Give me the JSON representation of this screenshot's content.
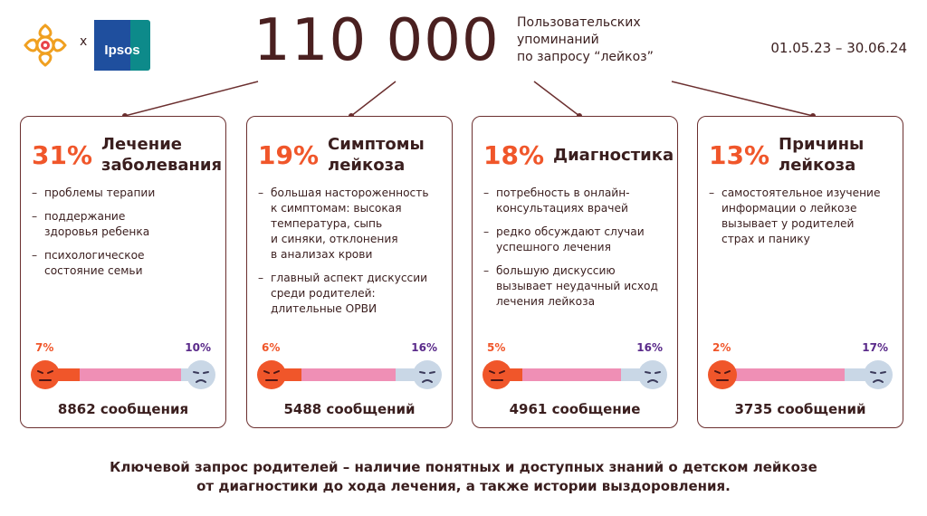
{
  "header": {
    "logo_x": "x",
    "ipsos_text": "Ipsos",
    "big_number": "110 000",
    "mentions_lines": [
      "Пользовательских",
      "упоминаний",
      "по запросу “лейкоз”"
    ],
    "date_range": "01.05.23 – 30.06.24"
  },
  "colors": {
    "accent_orange": "#f0562a",
    "pink": "#ef8fb5",
    "light_blue": "#c9d7e6",
    "purple": "#5a2a8a",
    "dark_brown": "#4a2020",
    "border": "#6b2f2f"
  },
  "cards": [
    {
      "percent": "31%",
      "title_lines": [
        "Лечение",
        "заболевания"
      ],
      "bullets": [
        [
          "проблемы терапии"
        ],
        [
          "поддержание",
          "здоровья ребенка"
        ],
        [
          "психологическое",
          "состояние семьи"
        ]
      ],
      "left_label": "7%",
      "right_label": "10%",
      "left_value": 7,
      "right_value": 10,
      "count": "8862 сообщения"
    },
    {
      "percent": "19%",
      "title_lines": [
        "Симптомы",
        "лейкоза"
      ],
      "bullets": [
        [
          "большая настороженность",
          "к симптомам: высокая",
          "температура, сыпь",
          "и синяки, отклонения",
          "в анализах крови"
        ],
        [
          "главный аспект дискуссии",
          "среди родителей:",
          "длительные ОРВИ"
        ]
      ],
      "left_label": "6%",
      "right_label": "16%",
      "left_value": 6,
      "right_value": 16,
      "count": "5488 сообщений"
    },
    {
      "percent": "18%",
      "title_lines": [
        "Диагностика"
      ],
      "bullets": [
        [
          "потребность в онлайн-",
          "консультациях врачей"
        ],
        [
          "редко обсуждают случаи",
          "успешного лечения"
        ],
        [
          "большую дискуссию",
          "вызывает неудачный исход",
          "лечения лейкоза"
        ]
      ],
      "left_label": "5%",
      "right_label": "16%",
      "left_value": 5,
      "right_value": 16,
      "count": "4961 сообщение"
    },
    {
      "percent": "13%",
      "title_lines": [
        "Причины",
        "лейкоза"
      ],
      "bullets": [
        [
          "самостоятельное изучение",
          "информации о лейкозе",
          "вызывает у родителей",
          "страх и панику"
        ]
      ],
      "left_label": "2%",
      "right_label": "17%",
      "left_value": 2,
      "right_value": 17,
      "count": "3735 сообщений"
    }
  ],
  "footer": {
    "lines": [
      "Ключевой запрос родителей – наличие понятных и доступных знаний о детском лейкозе",
      "от диагностики до хода лечения, а также истории выздоровления."
    ]
  }
}
